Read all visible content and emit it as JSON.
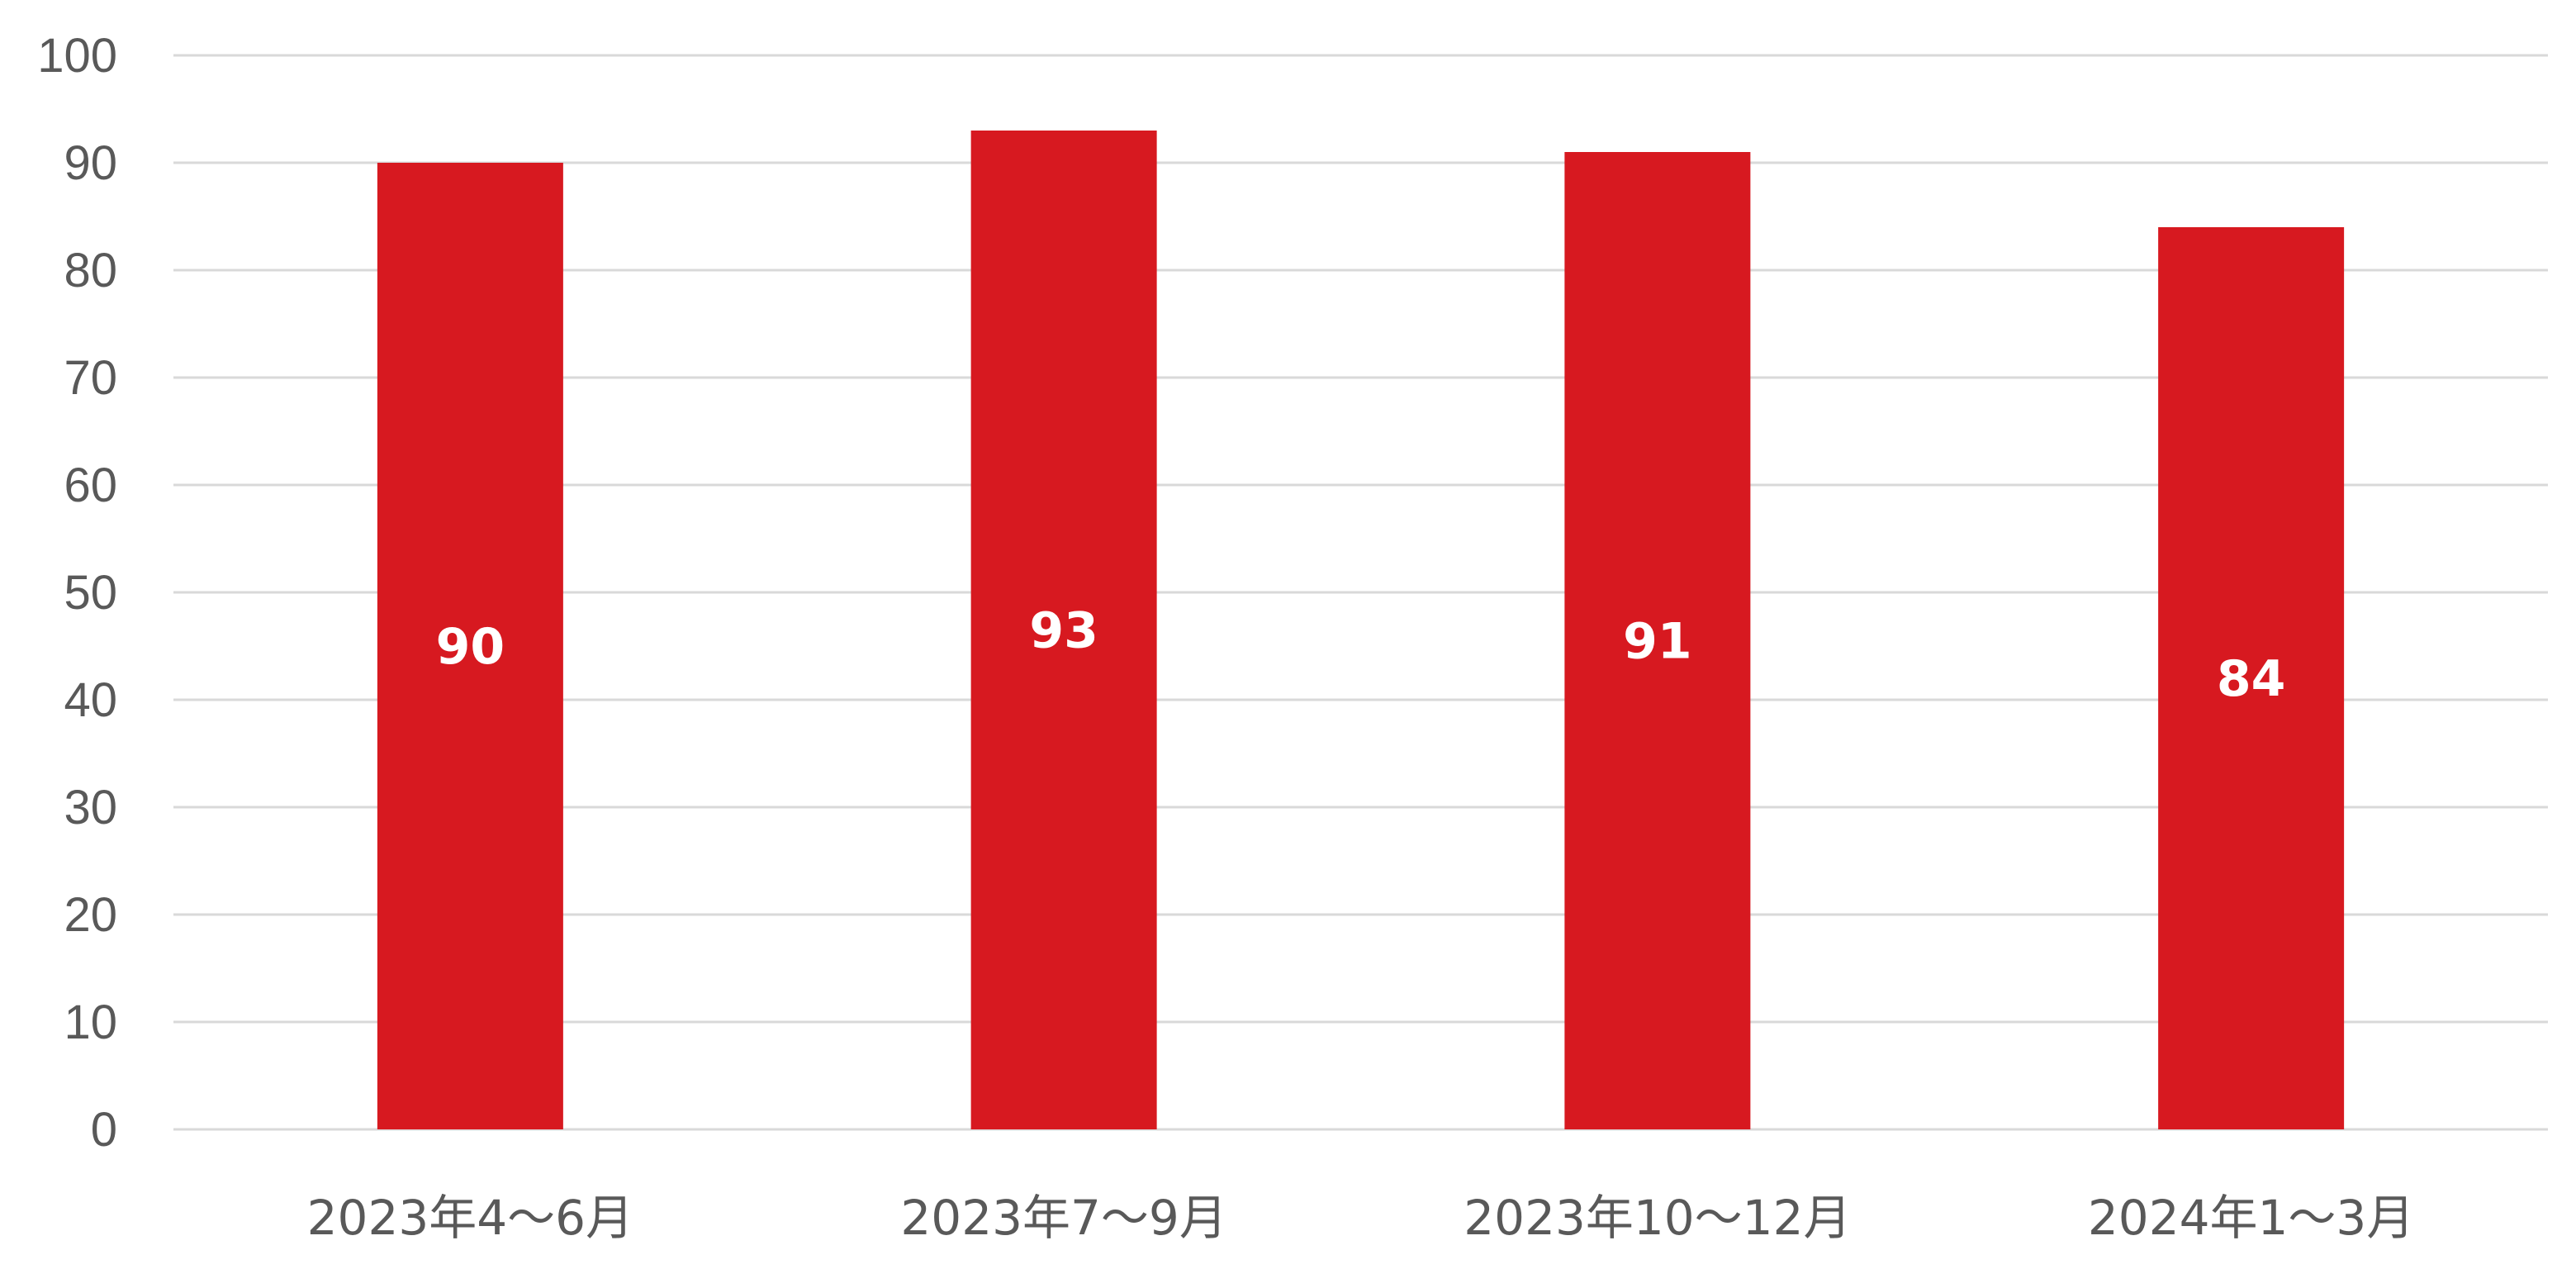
{
  "chart_data": {
    "type": "bar",
    "title": "",
    "xlabel": "",
    "ylabel": "",
    "categories": [
      "2023年4～6月",
      "2023年7～9月",
      "2023年10～12月",
      "2024年1～3月"
    ],
    "series": [
      {
        "values": [
          90,
          93,
          91,
          84
        ],
        "color": "#d71920"
      }
    ],
    "data_labels": [
      "90",
      "93",
      "91",
      "84"
    ],
    "data_label_color": "#ffffff",
    "ylim": [
      0,
      100
    ],
    "yticks": [
      "0",
      "10",
      "20",
      "30",
      "40",
      "50",
      "60",
      "70",
      "80",
      "90",
      "100"
    ],
    "grid": true,
    "legend": "none"
  }
}
